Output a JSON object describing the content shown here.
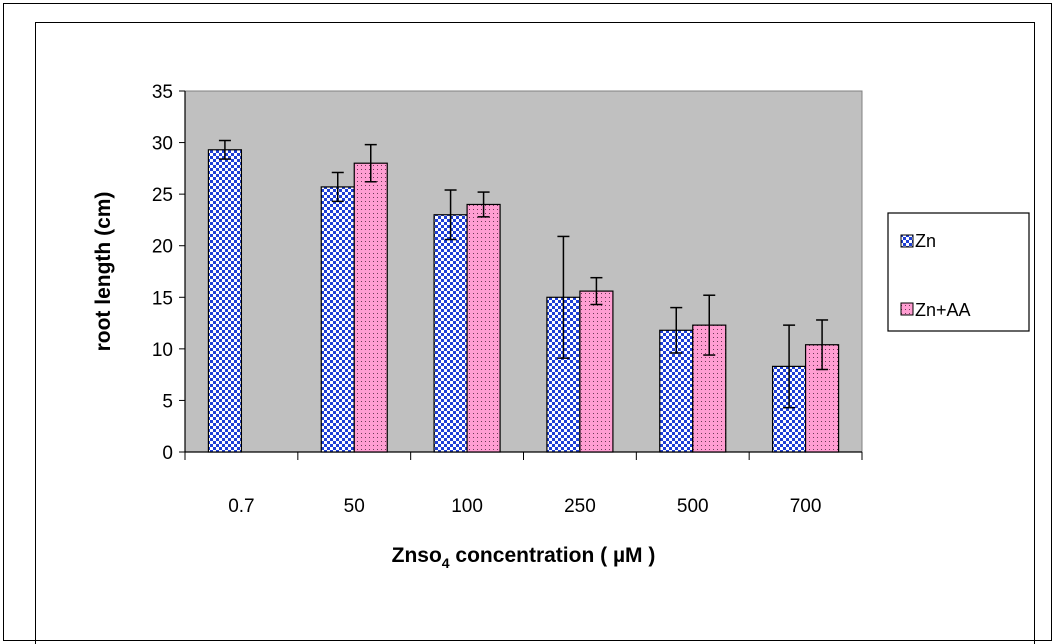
{
  "colors": {
    "plot_bg": "#c0c0c0",
    "zn_fill": "#1f3fd6",
    "zn_check": "#ffffff",
    "znaa_fill": "#ff9ed2",
    "znaa_dot": "#6b3a55"
  },
  "chart_data": {
    "type": "bar",
    "title": "",
    "xlabel_main": "Znso",
    "xlabel_sub": "4",
    "xlabel_rest": " concentration  ( µM )",
    "ylabel": "root  length  (cm)",
    "ylim": [
      0,
      35
    ],
    "yticks": [
      "0",
      "5",
      "10",
      "15",
      "20",
      "25",
      "30",
      "35"
    ],
    "categories": [
      "0.7",
      "50",
      "100",
      "250",
      "500",
      "700"
    ],
    "legend_position": "right",
    "series": [
      {
        "name": "Zn",
        "values": [
          29.3,
          25.7,
          23.0,
          15.0,
          11.8,
          8.3
        ],
        "errors": [
          0.9,
          1.4,
          2.4,
          5.9,
          2.2,
          4.0
        ]
      },
      {
        "name": "Zn+AA",
        "values": [
          null,
          28.0,
          24.0,
          15.6,
          12.3,
          10.4
        ],
        "errors": [
          null,
          1.8,
          1.2,
          1.3,
          2.9,
          2.4
        ]
      }
    ]
  }
}
